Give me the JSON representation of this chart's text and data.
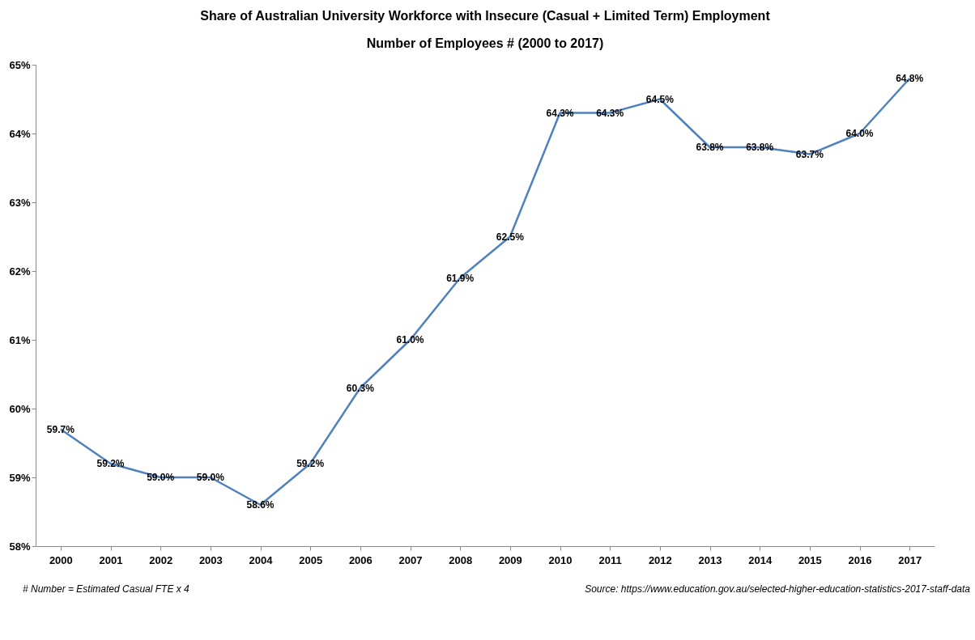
{
  "chart_data": {
    "type": "line",
    "title": "Share of Australian University Workforce with Insecure (Casual + Limited Term) Employment",
    "subtitle": "Number of Employees # (2000 to 2017)",
    "categories": [
      "2000",
      "2001",
      "2002",
      "2003",
      "2004",
      "2005",
      "2006",
      "2007",
      "2008",
      "2009",
      "2010",
      "2011",
      "2012",
      "2013",
      "2014",
      "2015",
      "2016",
      "2017"
    ],
    "values": [
      59.7,
      59.2,
      59.0,
      59.0,
      58.6,
      59.2,
      60.3,
      61.0,
      61.9,
      62.5,
      64.3,
      64.3,
      64.5,
      63.8,
      63.8,
      63.7,
      64.0,
      64.8
    ],
    "value_labels": [
      "59.7%",
      "59.2%",
      "59.0%",
      "59.0%",
      "58.6%",
      "59.2%",
      "60.3%",
      "61.0%",
      "61.9%",
      "62.5%",
      "64.3%",
      "64.3%",
      "64.5%",
      "63.8%",
      "63.8%",
      "63.7%",
      "64.0%",
      "64.8%"
    ],
    "color": "#4f81bd",
    "ylim": [
      58,
      65
    ],
    "yticks": [
      {
        "value": 58,
        "label": "58%"
      },
      {
        "value": 59,
        "label": "59%"
      },
      {
        "value": 60,
        "label": "60%"
      },
      {
        "value": 61,
        "label": "61%"
      },
      {
        "value": 62,
        "label": "62%"
      },
      {
        "value": 63,
        "label": "63%"
      },
      {
        "value": 64,
        "label": "64%"
      },
      {
        "value": 65,
        "label": "65%"
      }
    ],
    "annotations": [
      "# Number  = Estimated Casual FTE x 4",
      "Source:  https://www.education.gov.au/selected-higher-education-statistics-2017-staff-data"
    ]
  }
}
